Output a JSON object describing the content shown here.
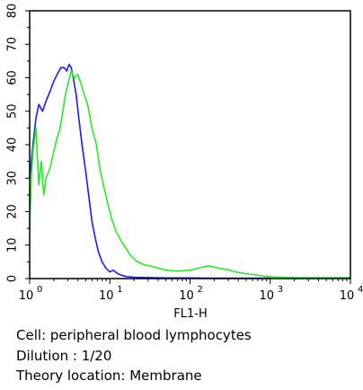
{
  "chart_data": {
    "type": "line",
    "xlabel": "FL1-H",
    "ylabel": "",
    "x_scale": "log",
    "xlim": [
      1,
      10000
    ],
    "ylim": [
      0,
      80
    ],
    "grid": false,
    "x_tick_labels": [
      {
        "base": "10",
        "exp": "0",
        "value": 1
      },
      {
        "base": "10",
        "exp": "1",
        "value": 10
      },
      {
        "base": "10",
        "exp": "2",
        "value": 100
      },
      {
        "base": "10",
        "exp": "3",
        "value": 1000
      },
      {
        "base": "10",
        "exp": "4",
        "value": 10000
      }
    ],
    "y_ticks": [
      0,
      10,
      20,
      30,
      40,
      50,
      60,
      70,
      80
    ],
    "series": [
      {
        "color": "#1a1aff",
        "x": [
          1.0,
          1.1,
          1.2,
          1.3,
          1.45,
          1.6,
          1.8,
          2.0,
          2.2,
          2.45,
          2.7,
          2.9,
          3.1,
          3.3,
          3.5,
          3.8,
          4.1,
          4.5,
          5.0,
          5.5,
          6.0,
          6.6,
          7.2,
          8.0,
          9.0,
          10.0,
          11.0,
          12.5,
          14.0,
          16.0,
          20.0,
          30.0,
          50.0,
          100.0,
          200.0,
          500.0,
          1000.0
        ],
        "y": [
          30,
          40,
          48,
          52,
          50,
          53,
          56,
          59,
          61,
          63,
          63,
          62,
          64,
          63,
          60,
          55,
          48,
          40,
          32,
          24,
          17,
          12,
          8,
          5,
          3,
          2,
          2.5,
          1.5,
          1,
          0.6,
          0.4,
          0.3,
          0.2,
          0.2,
          0.1,
          0.1,
          0.1
        ]
      },
      {
        "color": "#22ee22",
        "x": [
          1.0,
          1.05,
          1.1,
          1.2,
          1.3,
          1.4,
          1.5,
          1.6,
          1.8,
          2.0,
          2.2,
          2.4,
          2.6,
          2.8,
          3.0,
          3.3,
          3.6,
          4.0,
          4.4,
          4.8,
          5.3,
          6.0,
          6.8,
          7.5,
          8.5,
          9.5,
          10.5,
          12.0,
          14.0,
          16.0,
          18.0,
          22.0,
          28.0,
          35.0,
          50.0,
          70.0,
          100.0,
          130.0,
          170.0,
          220.0,
          300.0,
          400.0,
          600.0,
          800.0,
          1000.0,
          2000.0,
          5000.0,
          10000.0
        ],
        "y": [
          15,
          30,
          38,
          45,
          28,
          35,
          25,
          30,
          33,
          38,
          42,
          45,
          50,
          55,
          58,
          62,
          60,
          61,
          58,
          55,
          52,
          45,
          40,
          33,
          27,
          22,
          18,
          14,
          11,
          9,
          7,
          5,
          4,
          3.5,
          2.5,
          2.2,
          2.5,
          3.2,
          3.8,
          3.2,
          2.6,
          1.8,
          1.2,
          0.8,
          0.5,
          0.3,
          0.3,
          0.3
        ]
      }
    ]
  },
  "captions": {
    "cell": "Cell: peripheral blood lymphocytes",
    "dilution": "Dilution : 1/20",
    "theory": "Theory location: Membrane"
  }
}
